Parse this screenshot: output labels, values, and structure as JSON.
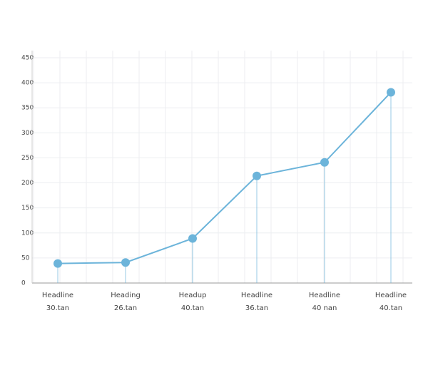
{
  "chart_data": {
    "type": "line",
    "categories": [
      [
        "Headline",
        "30.tan"
      ],
      [
        "Heading",
        "26.tan"
      ],
      [
        "Headup",
        "40.tan"
      ],
      [
        "Headline",
        "36.tan"
      ],
      [
        "Headline",
        "40 nan"
      ],
      [
        "Headline",
        "40.tan"
      ]
    ],
    "series": [
      {
        "color": "#6cb4da",
        "values": [
          39,
          41,
          89,
          214,
          241,
          381
        ]
      }
    ],
    "ylim": [
      0,
      450
    ],
    "yticks": [
      0,
      50,
      100,
      150,
      200,
      250,
      300,
      350,
      400,
      450
    ],
    "grid": true
  }
}
